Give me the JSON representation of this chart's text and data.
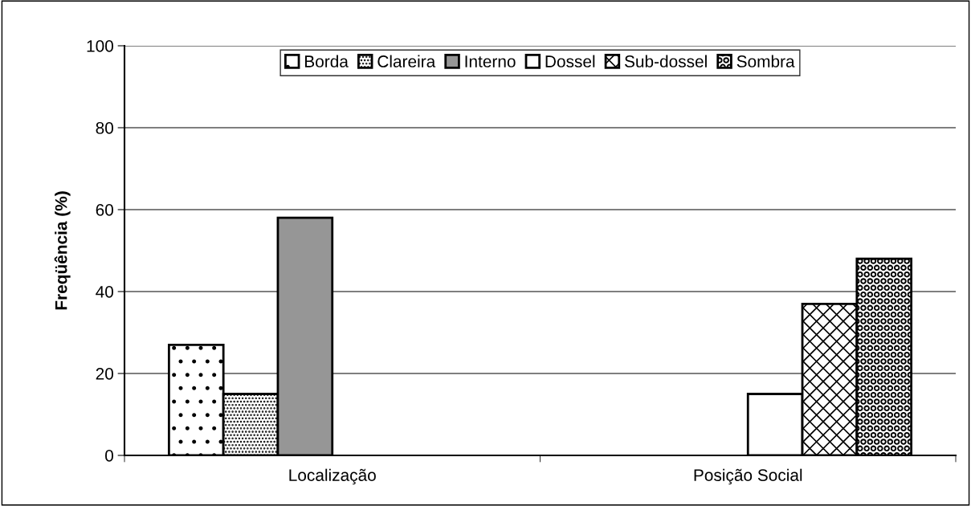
{
  "chart_data": {
    "type": "bar",
    "ylabel": "Freqüência (%)",
    "categories": [
      "Localização",
      "Posição Social"
    ],
    "series": [
      {
        "name": "Borda",
        "color": "#000000",
        "values": [
          27,
          null
        ]
      },
      {
        "name": "Clareira",
        "color": "#000000",
        "values": [
          15,
          null
        ]
      },
      {
        "name": "Interno",
        "color": "#969696",
        "values": [
          58,
          null
        ]
      },
      {
        "name": "Dossel",
        "color": "#ffffff",
        "values": [
          null,
          15
        ]
      },
      {
        "name": "Sub-dossel",
        "color": "#000000",
        "values": [
          null,
          37
        ]
      },
      {
        "name": "Sombra",
        "color": "#000000",
        "values": [
          null,
          48
        ]
      }
    ],
    "ylim": [
      0,
      100
    ],
    "yticks": [
      0,
      20,
      40,
      60,
      80,
      100
    ],
    "grid": "y",
    "legend": "top"
  }
}
